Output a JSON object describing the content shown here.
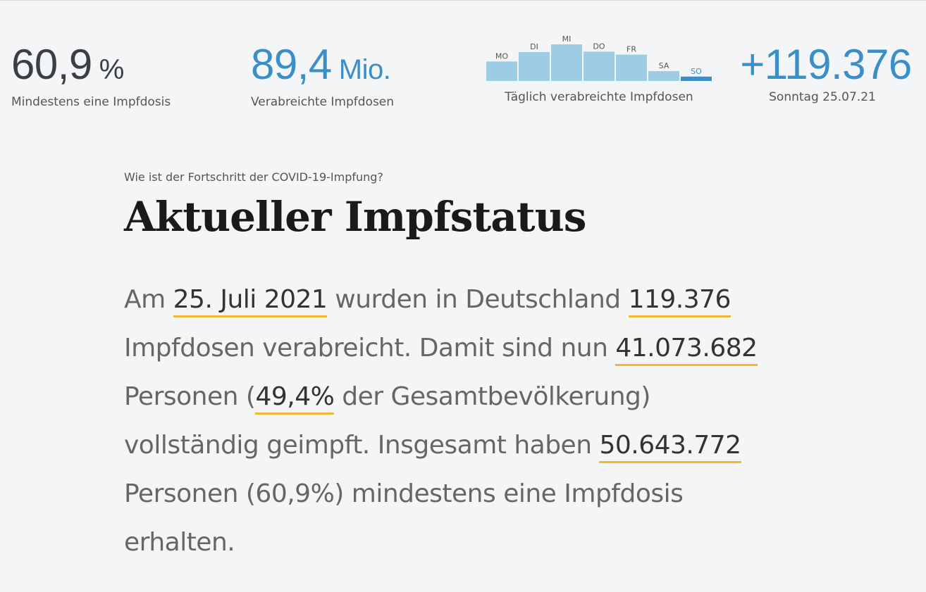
{
  "kpis": {
    "first_dose": {
      "value": "60,9",
      "unit": "%",
      "label": "Mindestens eine Impfdosis"
    },
    "total_doses": {
      "value": "89,4",
      "unit": "Mio.",
      "label": "Verabreichte Impfdosen"
    },
    "daily": {
      "label": "Täglich verabreichte Impfdosen"
    },
    "today": {
      "value": "+119.376",
      "label": "Sonntag 25.07.21"
    }
  },
  "chart_data": {
    "type": "bar",
    "categories": [
      "MO",
      "DI",
      "MI",
      "DO",
      "FR",
      "SA",
      "SO"
    ],
    "values": [
      530000,
      790000,
      1000000,
      800000,
      720000,
      270000,
      119376
    ],
    "highlight_index": 6,
    "colors": {
      "bar": "#9ecce6",
      "highlight": "#3a8fc6",
      "label": "#555555"
    }
  },
  "content": {
    "eyebrow": "Wie ist der Fortschritt der COVID-19-Impfung?",
    "title": "Aktueller Impfstatus",
    "summary": {
      "t1": "Am ",
      "date": "25. Juli 2021",
      "t2": " wurden in Deutschland ",
      "doses": "119.376",
      "t3": " Impfdosen verabreicht. Damit sind nun ",
      "fully": "41.073.682",
      "t4": " Personen (",
      "fully_pct": "49,4%",
      "t5": " der Gesamtbevölkerung) vollständig geimpft. Insgesamt haben ",
      "first": "50.643.772",
      "t6": " Personen (60,9%) mindestens eine Impfdosis erhalten."
    }
  }
}
